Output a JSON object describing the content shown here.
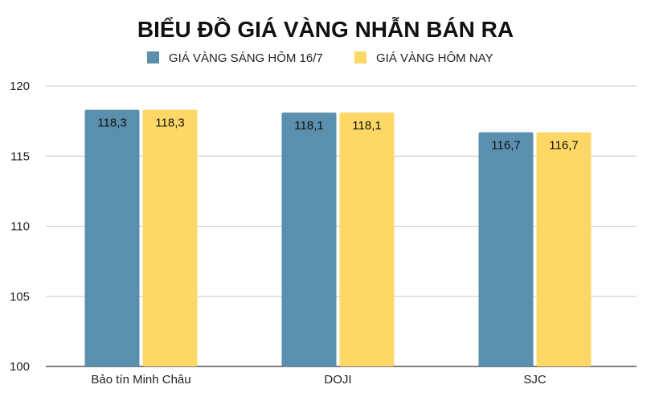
{
  "chart_data": {
    "type": "bar",
    "title": "BIỂU ĐỒ GIÁ VÀNG NHẪN BÁN RA",
    "categories": [
      "Bảo tín Minh Châu",
      "DOJI",
      "SJC"
    ],
    "series": [
      {
        "name": "GIÁ VÀNG SÁNG HÔM 16/7",
        "values": [
          118.3,
          118.1,
          116.7
        ],
        "labels": [
          "118,3",
          "118,1",
          "116,7"
        ],
        "color": "#5B8FAE"
      },
      {
        "name": "GIÁ VÀNG HÔM NAY",
        "values": [
          118.3,
          118.1,
          116.7
        ],
        "labels": [
          "118,3",
          "118,1",
          "116,7"
        ],
        "color": "#FDD867"
      }
    ],
    "ylim": [
      100,
      120
    ],
    "yticks": [
      100,
      105,
      110,
      115,
      120
    ],
    "grid": true,
    "legend": "top-center"
  }
}
